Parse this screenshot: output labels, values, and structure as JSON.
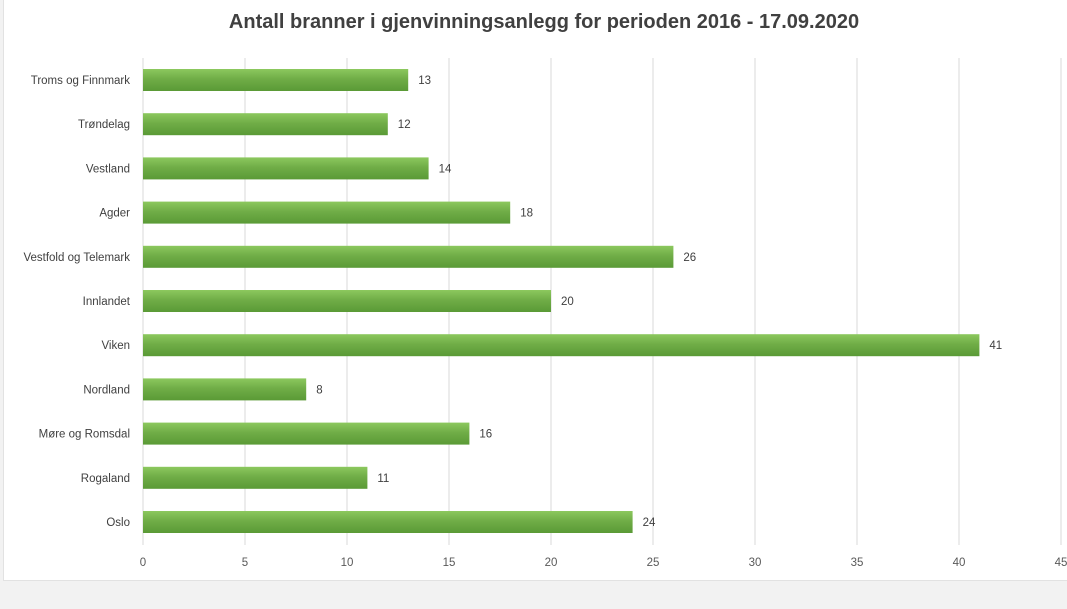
{
  "chart_data": {
    "type": "bar",
    "orientation": "horizontal",
    "title": "Antall branner i gjenvinningsanlegg for perioden 2016 - 17.09.2020",
    "categories": [
      "Troms og Finnmark",
      "Trøndelag",
      "Vestland",
      "Agder",
      "Vestfold og Telemark",
      "Innlandet",
      "Viken",
      "Nordland",
      "Møre og Romsdal",
      "Rogaland",
      "Oslo"
    ],
    "values": [
      13,
      12,
      14,
      18,
      26,
      20,
      41,
      8,
      16,
      11,
      24
    ],
    "xlim": [
      0,
      45
    ],
    "xticks": [
      "0",
      "5",
      "10",
      "15",
      "20",
      "25",
      "30",
      "35",
      "40",
      "45"
    ],
    "grid": "vertical",
    "data_labels": true,
    "colors": {
      "bar": "#70ad47",
      "bar_light": "#8cc85e",
      "bar_dark": "#5a9a36",
      "grid": "#d9d9d9"
    }
  }
}
